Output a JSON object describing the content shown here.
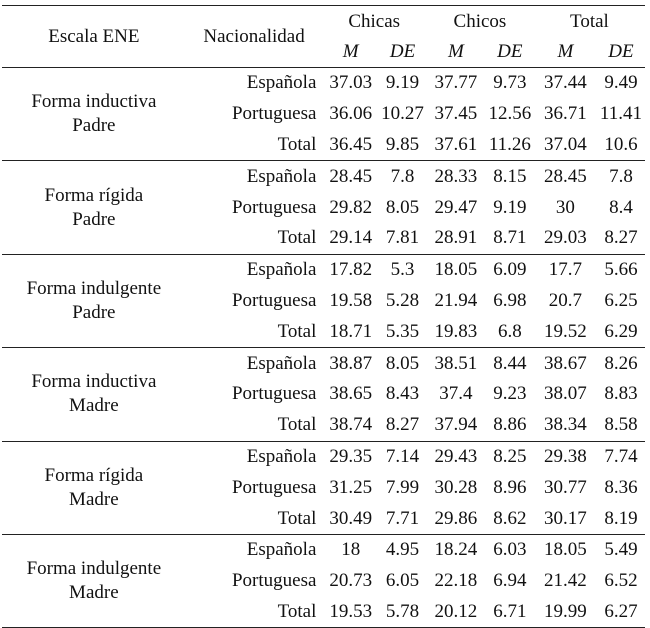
{
  "header": {
    "scale_label": "Escala ENE",
    "nationality_label": "Nacionalidad",
    "groups": [
      "Chicas",
      "Chicos",
      "Total"
    ],
    "stat_m": "M",
    "stat_de": "DE"
  },
  "blocks": [
    {
      "scale_line1": "Forma inductiva",
      "scale_line2": "Padre",
      "rows": [
        {
          "nat": "Española",
          "vals": [
            "37.03",
            "9.19",
            "37.77",
            "9.73",
            "37.44",
            "9.49"
          ]
        },
        {
          "nat": "Portuguesa",
          "vals": [
            "36.06",
            "10.27",
            "37.45",
            "12.56",
            "36.71",
            "11.41"
          ]
        },
        {
          "nat": "Total",
          "vals": [
            "36.45",
            "9.85",
            "37.61",
            "11.26",
            "37.04",
            "10.6"
          ]
        }
      ]
    },
    {
      "scale_line1": "Forma rígida",
      "scale_line2": "Padre",
      "rows": [
        {
          "nat": "Española",
          "vals": [
            "28.45",
            "7.8",
            "28.33",
            "8.15",
            "28.45",
            "7.8"
          ]
        },
        {
          "nat": "Portuguesa",
          "vals": [
            "29.82",
            "8.05",
            "29.47",
            "9.19",
            "30",
            "8.4"
          ]
        },
        {
          "nat": "Total",
          "vals": [
            "29.14",
            "7.81",
            "28.91",
            "8.71",
            "29.03",
            "8.27"
          ]
        }
      ]
    },
    {
      "scale_line1": "Forma indulgente",
      "scale_line2": "Padre",
      "rows": [
        {
          "nat": "Española",
          "vals": [
            "17.82",
            "5.3",
            "18.05",
            "6.09",
            "17.7",
            "5.66"
          ]
        },
        {
          "nat": "Portuguesa",
          "vals": [
            "19.58",
            "5.28",
            "21.94",
            "6.98",
            "20.7",
            "6.25"
          ]
        },
        {
          "nat": "Total",
          "vals": [
            "18.71",
            "5.35",
            "19.83",
            "6.8",
            "19.52",
            "6.29"
          ]
        }
      ]
    },
    {
      "scale_line1": "Forma inductiva",
      "scale_line2": "Madre",
      "rows": [
        {
          "nat": "Española",
          "vals": [
            "38.87",
            "8.05",
            "38.51",
            "8.44",
            "38.67",
            "8.26"
          ]
        },
        {
          "nat": "Portuguesa",
          "vals": [
            "38.65",
            "8.43",
            "37.4",
            "9.23",
            "38.07",
            "8.83"
          ]
        },
        {
          "nat": "Total",
          "vals": [
            "38.74",
            "8.27",
            "37.94",
            "8.86",
            "38.34",
            "8.58"
          ]
        }
      ]
    },
    {
      "scale_line1": "Forma rígida",
      "scale_line2": "Madre",
      "rows": [
        {
          "nat": "Española",
          "vals": [
            "29.35",
            "7.14",
            "29.43",
            "8.25",
            "29.38",
            "7.74"
          ]
        },
        {
          "nat": "Portuguesa",
          "vals": [
            "31.25",
            "7.99",
            "30.28",
            "8.96",
            "30.77",
            "8.36"
          ]
        },
        {
          "nat": "Total",
          "vals": [
            "30.49",
            "7.71",
            "29.86",
            "8.62",
            "30.17",
            "8.19"
          ]
        }
      ]
    },
    {
      "scale_line1": "Forma indulgente",
      "scale_line2": "Madre",
      "rows": [
        {
          "nat": "Española",
          "vals": [
            "18",
            "4.95",
            "18.24",
            "6.03",
            "18.05",
            "5.49"
          ]
        },
        {
          "nat": "Portuguesa",
          "vals": [
            "20.73",
            "6.05",
            "22.18",
            "6.94",
            "21.42",
            "6.52"
          ]
        },
        {
          "nat": "Total",
          "vals": [
            "19.53",
            "5.78",
            "20.12",
            "6.71",
            "19.99",
            "6.27"
          ]
        }
      ]
    }
  ]
}
